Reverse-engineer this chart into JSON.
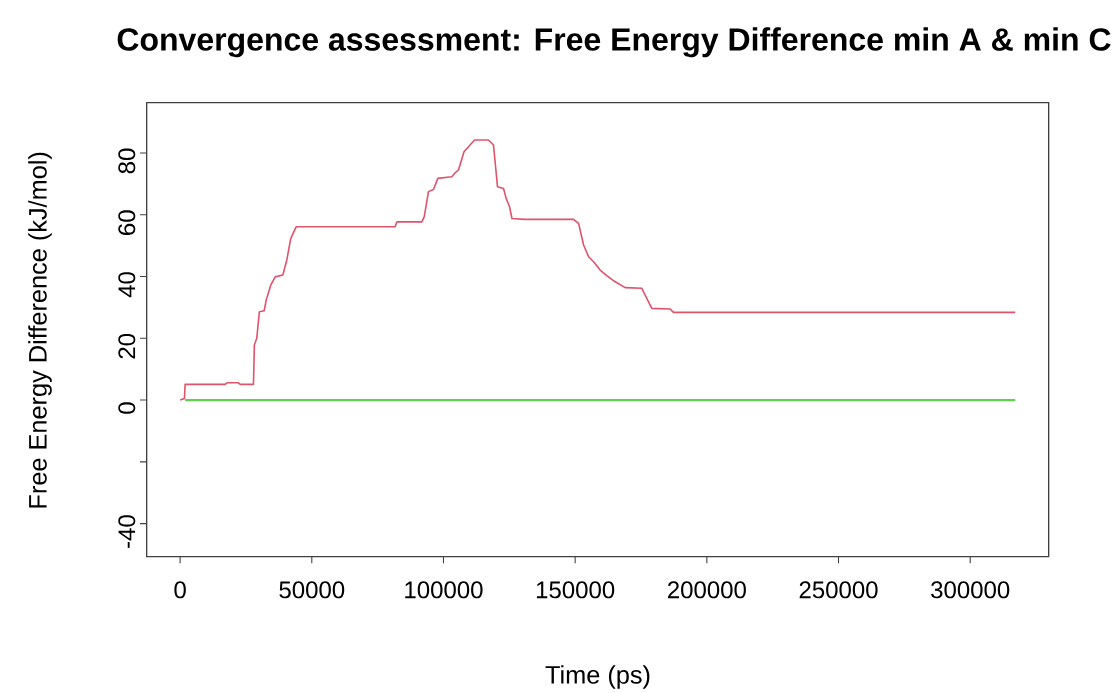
{
  "chart_data": {
    "type": "line",
    "title": "Convergence assessment: Free Energy Difference min A & min C",
    "xlabel": "Time (ps)",
    "ylabel": "Free Energy Difference (kJ/mol)",
    "xlim": [
      -12700,
      329800
    ],
    "ylim": [
      -50.7,
      96.3
    ],
    "xticks": [
      0,
      50000,
      100000,
      150000,
      200000,
      250000,
      300000
    ],
    "yticks": [
      -40,
      {
        "value": -20,
        "label": null
      },
      0,
      20,
      40,
      60,
      80
    ],
    "grid": false,
    "marker": "none",
    "line_style": "solid",
    "series": [
      {
        "color": "#df536b",
        "x": [
          0,
          1650,
          1900,
          17100,
          17800,
          22150,
          22800,
          27850,
          28200,
          29100,
          30100,
          31900,
          32700,
          34400,
          36100,
          39000,
          40500,
          42000,
          44050,
          81650,
          82300,
          91800,
          92700,
          94300,
          96200,
          97850,
          103200,
          104400,
          105700,
          107800,
          109500,
          111800,
          117100,
          119000,
          120500,
          122800,
          123800,
          125100,
          126000,
          131000,
          149400,
          151300,
          153200,
          155100,
          157000,
          159500,
          162000,
          165200,
          169000,
          175300,
          179100,
          186100,
          187300,
          317100
        ],
        "values": [
          0,
          0.5,
          5.1,
          5.1,
          5.6,
          5.6,
          5.1,
          5.1,
          17.8,
          20,
          28.6,
          28.9,
          32.4,
          37.2,
          39.9,
          40.5,
          45.3,
          52.3,
          56.1,
          56.1,
          57.7,
          57.7,
          59.4,
          67.5,
          68.2,
          71.8,
          72.3,
          73.6,
          74.5,
          80.4,
          82.0,
          84.2,
          84.2,
          82.6,
          69.1,
          68.5,
          65.3,
          62.6,
          58.8,
          58.5,
          58.5,
          57.2,
          50.2,
          46.4,
          44.8,
          42.1,
          40.3,
          38.3,
          36.4,
          36.2,
          29.7,
          29.5,
          28.4,
          28.4
        ]
      },
      {
        "color": "#61d04f",
        "x": [
          1900,
          317100
        ],
        "values": [
          0,
          0
        ]
      }
    ]
  }
}
